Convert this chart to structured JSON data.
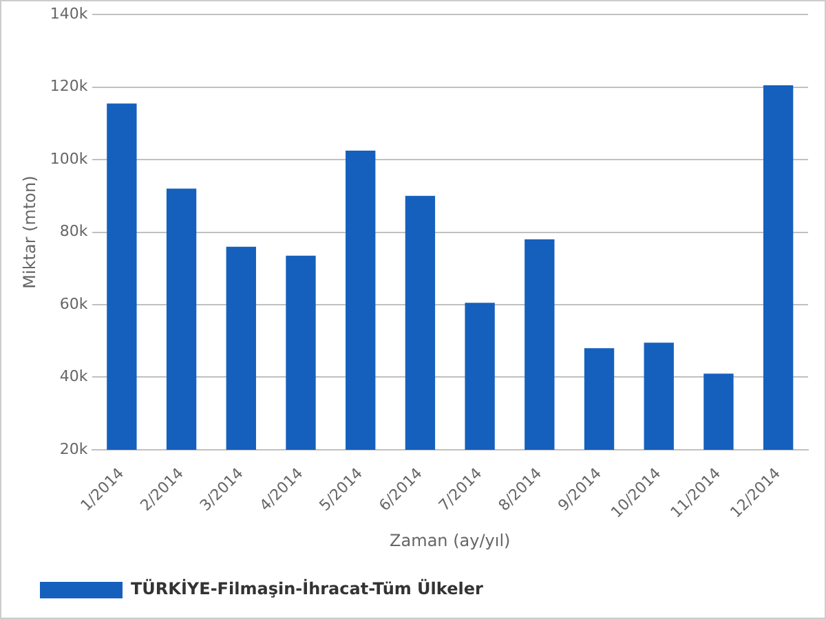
{
  "chart_data": {
    "type": "bar",
    "xlabel": "Zaman (ay/yıl)",
    "ylabel": "Miktar (mton)",
    "categories": [
      "1/2014",
      "2/2014",
      "3/2014",
      "4/2014",
      "5/2014",
      "6/2014",
      "7/2014",
      "8/2014",
      "9/2014",
      "10/2014",
      "11/2014",
      "12/2014"
    ],
    "series": [
      {
        "name": "TÜRKİYE-Filmaşin-İhracat-Tüm Ülkeler",
        "color": "#1560bd",
        "values": [
          115500,
          92000,
          76000,
          73500,
          102500,
          90000,
          60500,
          78000,
          48000,
          49500,
          41000,
          120500
        ]
      }
    ],
    "ylim": [
      20000,
      140000
    ],
    "yticks": [
      {
        "value": 20000,
        "label": "20k"
      },
      {
        "value": 40000,
        "label": "40k"
      },
      {
        "value": 60000,
        "label": "60k"
      },
      {
        "value": 80000,
        "label": "80k"
      },
      {
        "value": 100000,
        "label": "100k"
      },
      {
        "value": 120000,
        "label": "120k"
      },
      {
        "value": 140000,
        "label": "140k"
      }
    ],
    "grid": "y",
    "legend": "bottom left"
  }
}
